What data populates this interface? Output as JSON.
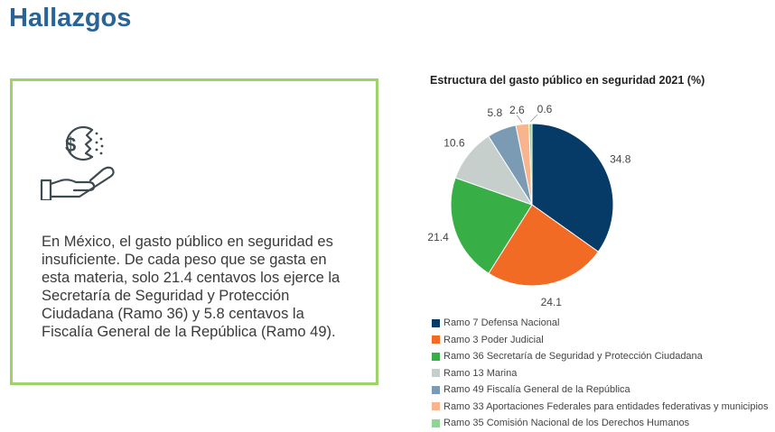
{
  "page": {
    "title": "Hallazgos"
  },
  "card": {
    "icon": "money-hand-icon",
    "text": "En México, el gasto público en seguridad es insuficiente. De cada peso que se gasta en esta materia, solo 21.4 centavos los ejerce la Secretaría de Seguridad y Protección Ciudadana (Ramo 36) y 5.8 centavos la Fiscalía General de la República (Ramo 49).",
    "border_color": "#9ed36a"
  },
  "chart_data": {
    "type": "pie",
    "title": "Estructura del gasto público en seguridad 2021 (%)",
    "legend_position": "bottom",
    "slices": [
      {
        "label": "Ramo 7 Defensa Nacional",
        "value": 34.8,
        "color": "#073b67"
      },
      {
        "label": "Ramo 3 Poder Judicial",
        "value": 24.1,
        "color": "#f26b24"
      },
      {
        "label": "Ramo 36 Secretaría de Seguridad y Protección Ciudadana",
        "value": 21.4,
        "color": "#37ae46"
      },
      {
        "label": "Ramo 13 Marina",
        "value": 10.6,
        "color": "#c6cfcc"
      },
      {
        "label": "Ramo 49 Fiscalía General de la República",
        "value": 5.8,
        "color": "#7b9bb5"
      },
      {
        "label": "Ramo 33 Aportaciones Federales para entidades federativas y municipios",
        "value": 2.6,
        "color": "#f8b58d"
      },
      {
        "label": "Ramo 35 Comisión Nacional de los Derechos Humanos",
        "value": 0.6,
        "color": "#8fd594"
      }
    ]
  }
}
